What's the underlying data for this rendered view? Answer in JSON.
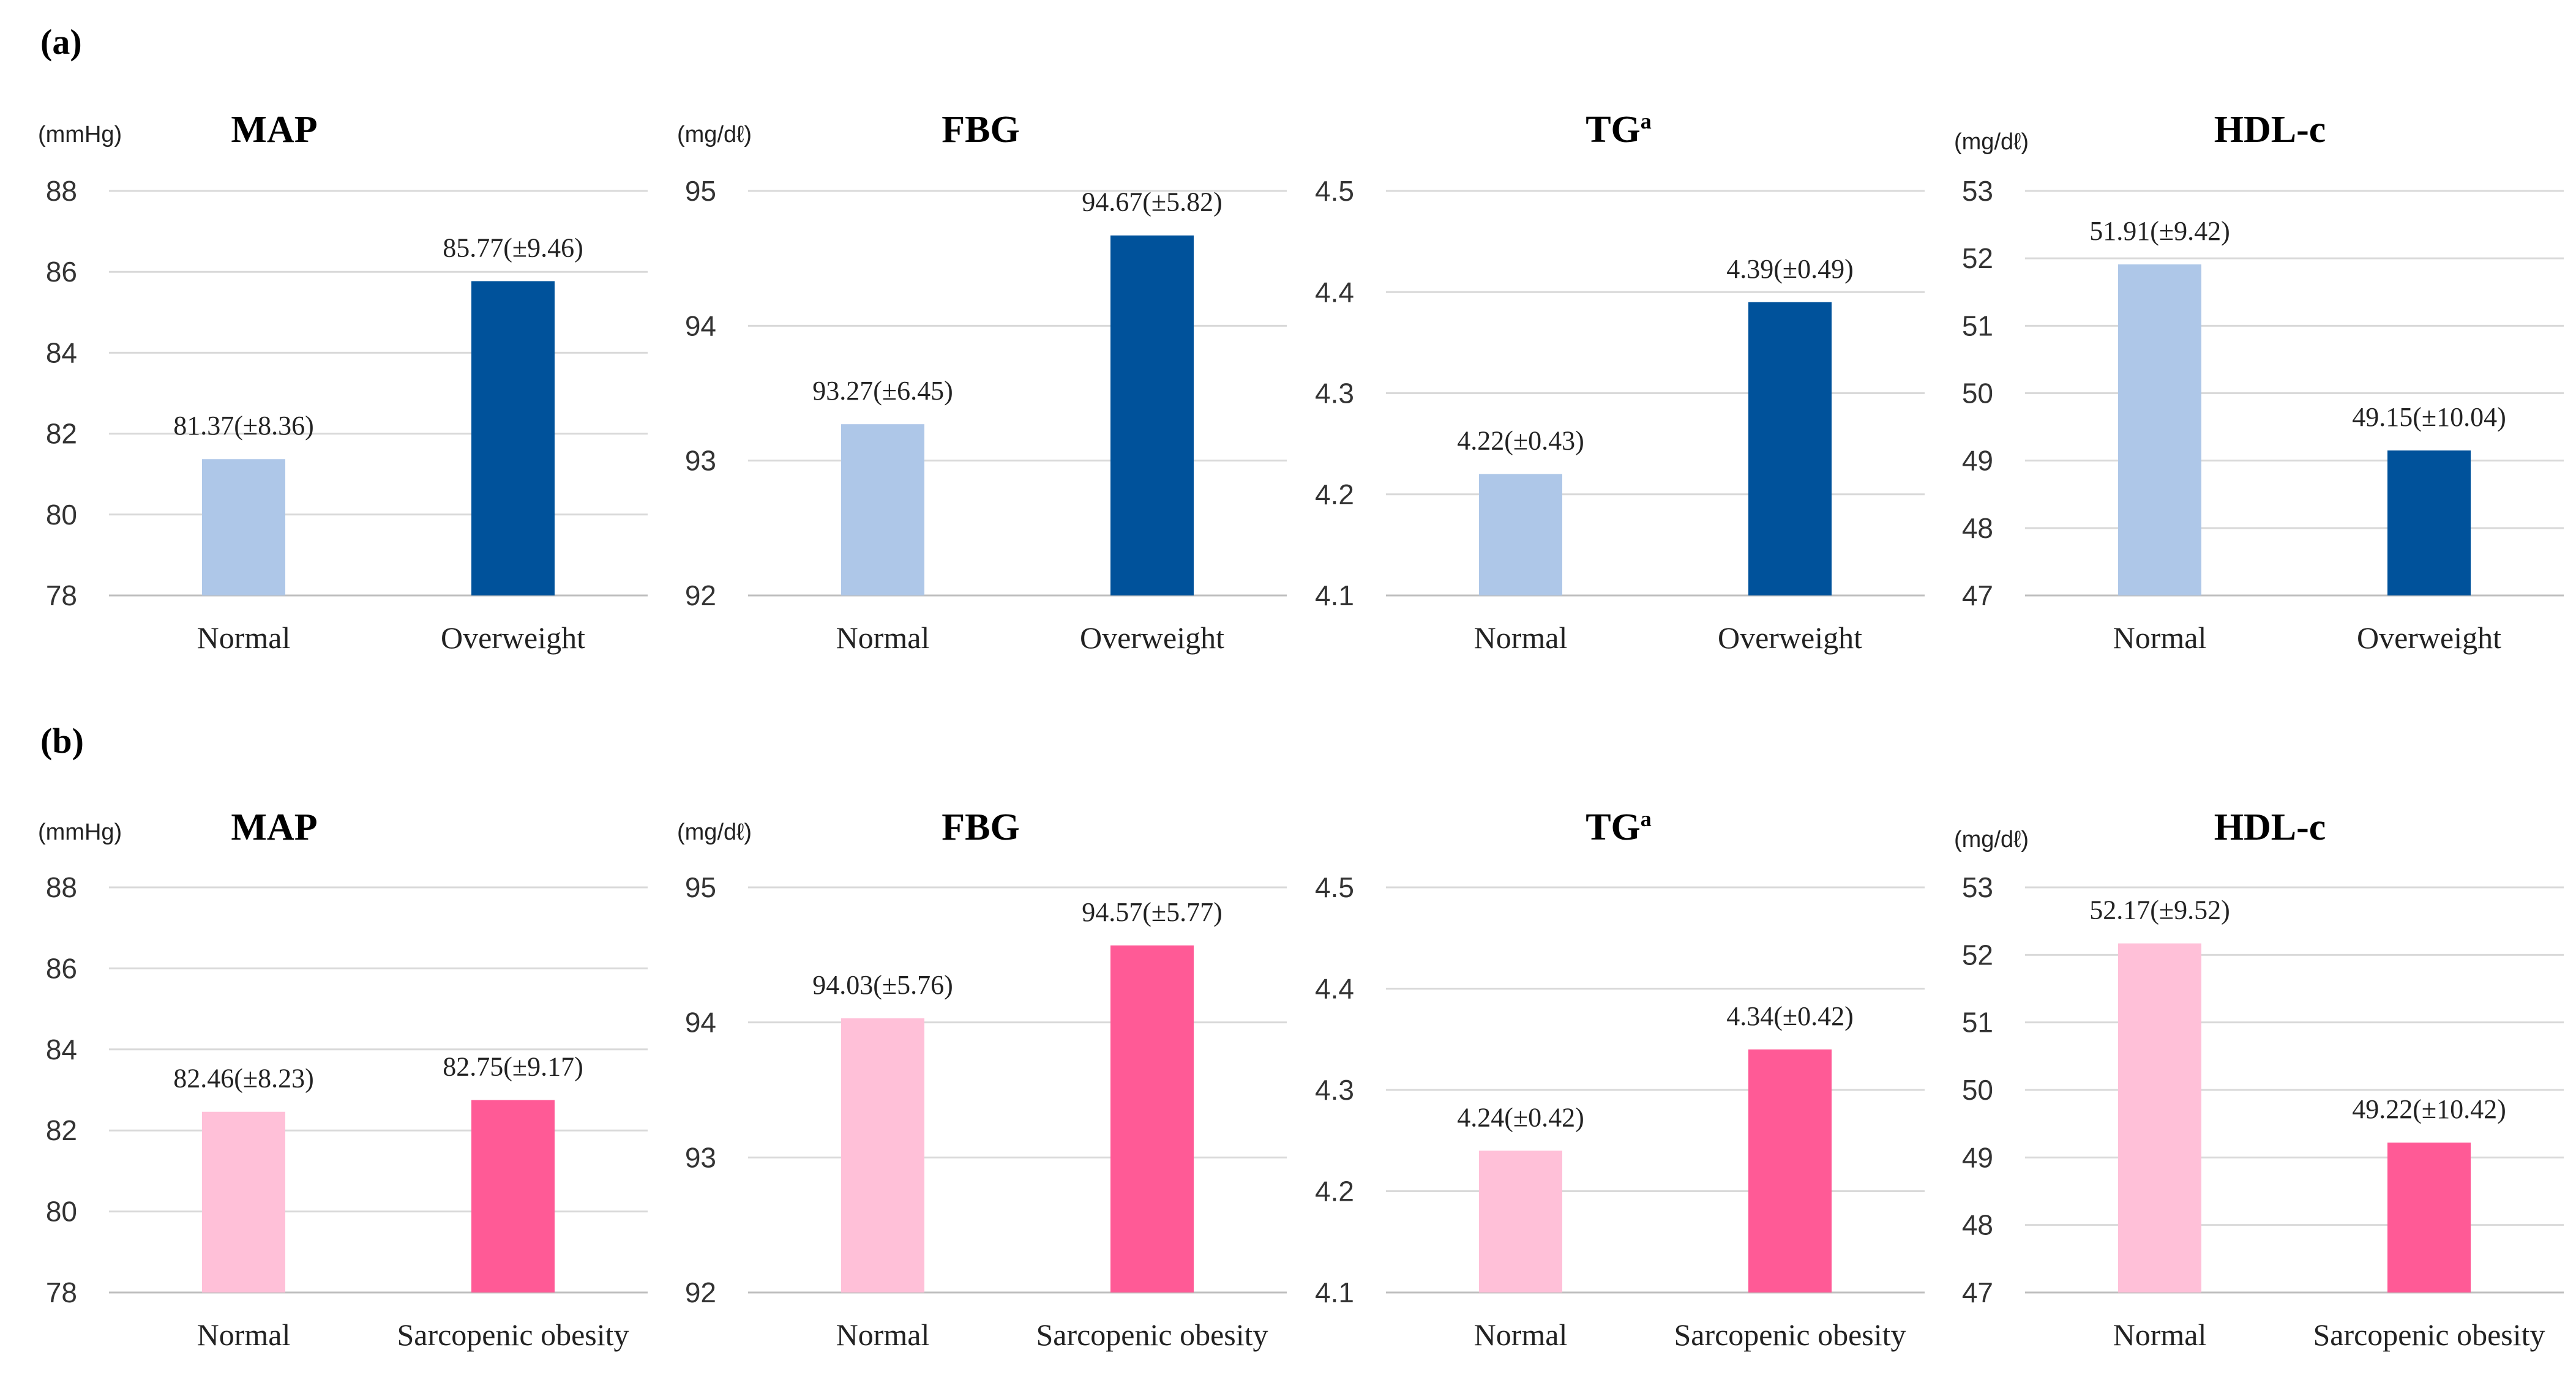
{
  "panels": [
    {
      "label": "(a)"
    },
    {
      "label": "(b)"
    }
  ],
  "chart_data": [
    {
      "type": "bar",
      "panel": "(a)",
      "title": "MAP",
      "title_superscript": "",
      "unit": "(mmHg)",
      "categories": [
        "Normal",
        "Overweight"
      ],
      "values": [
        81.37,
        85.77
      ],
      "data_labels": [
        "81.37(±8.36)",
        "85.77(±9.46)"
      ],
      "colors": [
        "#aec7e8",
        "#00529b"
      ],
      "ylim": [
        78,
        88
      ],
      "yticks": [
        78,
        80,
        82,
        84,
        86,
        88
      ],
      "ytick_labels": [
        "78",
        "80",
        "82",
        "84",
        "86",
        "88"
      ],
      "grid": true
    },
    {
      "type": "bar",
      "panel": "(a)",
      "title": "FBG",
      "title_superscript": "",
      "unit": "(mg/dℓ)",
      "categories": [
        "Normal",
        "Overweight"
      ],
      "values": [
        93.27,
        94.67
      ],
      "data_labels": [
        "93.27(±6.45)",
        "94.67(±5.82)"
      ],
      "colors": [
        "#aec7e8",
        "#00529b"
      ],
      "ylim": [
        92,
        95
      ],
      "yticks": [
        92,
        93,
        94,
        95
      ],
      "ytick_labels": [
        "92",
        "93",
        "94",
        "95"
      ],
      "grid": true
    },
    {
      "type": "bar",
      "panel": "(a)",
      "title": "TG",
      "title_superscript": "a",
      "unit": "",
      "categories": [
        "Normal",
        "Overweight"
      ],
      "values": [
        4.22,
        4.39
      ],
      "data_labels": [
        "4.22(±0.43)",
        "4.39(±0.49)"
      ],
      "colors": [
        "#aec7e8",
        "#00529b"
      ],
      "ylim": [
        4.1,
        4.5
      ],
      "yticks": [
        4.1,
        4.2,
        4.3,
        4.4,
        4.5
      ],
      "ytick_labels": [
        "4.1",
        "4.2",
        "4.3",
        "4.4",
        "4.5"
      ],
      "grid": true
    },
    {
      "type": "bar",
      "panel": "(a)",
      "title": "HDL-c",
      "title_superscript": "",
      "unit": "(mg/dℓ)",
      "categories": [
        "Normal",
        "Overweight"
      ],
      "values": [
        51.91,
        49.15
      ],
      "data_labels": [
        "51.91(±9.42)",
        "49.15(±10.04)"
      ],
      "colors": [
        "#aec7e8",
        "#00529b"
      ],
      "ylim": [
        47,
        53
      ],
      "yticks": [
        47,
        48,
        49,
        50,
        51,
        52,
        53
      ],
      "ytick_labels": [
        "47",
        "48",
        "49",
        "50",
        "51",
        "52",
        "53"
      ],
      "grid": true
    },
    {
      "type": "bar",
      "panel": "(b)",
      "title": "MAP",
      "title_superscript": "",
      "unit": "(mmHg)",
      "categories": [
        "Normal",
        "Sarcopenic obesity"
      ],
      "values": [
        82.46,
        82.75
      ],
      "data_labels": [
        "82.46(±8.23)",
        "82.75(±9.17)"
      ],
      "colors": [
        "#ffc0d8",
        "#ff5a96"
      ],
      "ylim": [
        78,
        88
      ],
      "yticks": [
        78,
        80,
        82,
        84,
        86,
        88
      ],
      "ytick_labels": [
        "78",
        "80",
        "82",
        "84",
        "86",
        "88"
      ],
      "grid": true
    },
    {
      "type": "bar",
      "panel": "(b)",
      "title": "FBG",
      "title_superscript": "",
      "unit": "(mg/dℓ)",
      "categories": [
        "Normal",
        "Sarcopenic obesity"
      ],
      "values": [
        94.03,
        94.57
      ],
      "data_labels": [
        "94.03(±5.76)",
        "94.57(±5.77)"
      ],
      "colors": [
        "#ffc0d8",
        "#ff5a96"
      ],
      "ylim": [
        92,
        95
      ],
      "yticks": [
        92,
        93,
        94,
        95
      ],
      "ytick_labels": [
        "92",
        "93",
        "94",
        "95"
      ],
      "grid": true
    },
    {
      "type": "bar",
      "panel": "(b)",
      "title": "TG",
      "title_superscript": "a",
      "unit": "",
      "categories": [
        "Normal",
        "Sarcopenic obesity"
      ],
      "values": [
        4.24,
        4.34
      ],
      "data_labels": [
        "4.24(±0.42)",
        "4.34(±0.42)"
      ],
      "colors": [
        "#ffc0d8",
        "#ff5a96"
      ],
      "ylim": [
        4.1,
        4.5
      ],
      "yticks": [
        4.1,
        4.2,
        4.3,
        4.4,
        4.5
      ],
      "ytick_labels": [
        "4.1",
        "4.2",
        "4.3",
        "4.4",
        "4.5"
      ],
      "grid": true
    },
    {
      "type": "bar",
      "panel": "(b)",
      "title": "HDL-c",
      "title_superscript": "",
      "unit": "(mg/dℓ)",
      "categories": [
        "Normal",
        "Sarcopenic obesity"
      ],
      "values": [
        52.17,
        49.22
      ],
      "data_labels": [
        "52.17(±9.52)",
        "49.22(±10.42)"
      ],
      "colors": [
        "#ffc0d8",
        "#ff5a96"
      ],
      "ylim": [
        47,
        53
      ],
      "yticks": [
        47,
        48,
        49,
        50,
        51,
        52,
        53
      ],
      "ytick_labels": [
        "47",
        "48",
        "49",
        "50",
        "51",
        "52",
        "53"
      ],
      "grid": true
    }
  ]
}
